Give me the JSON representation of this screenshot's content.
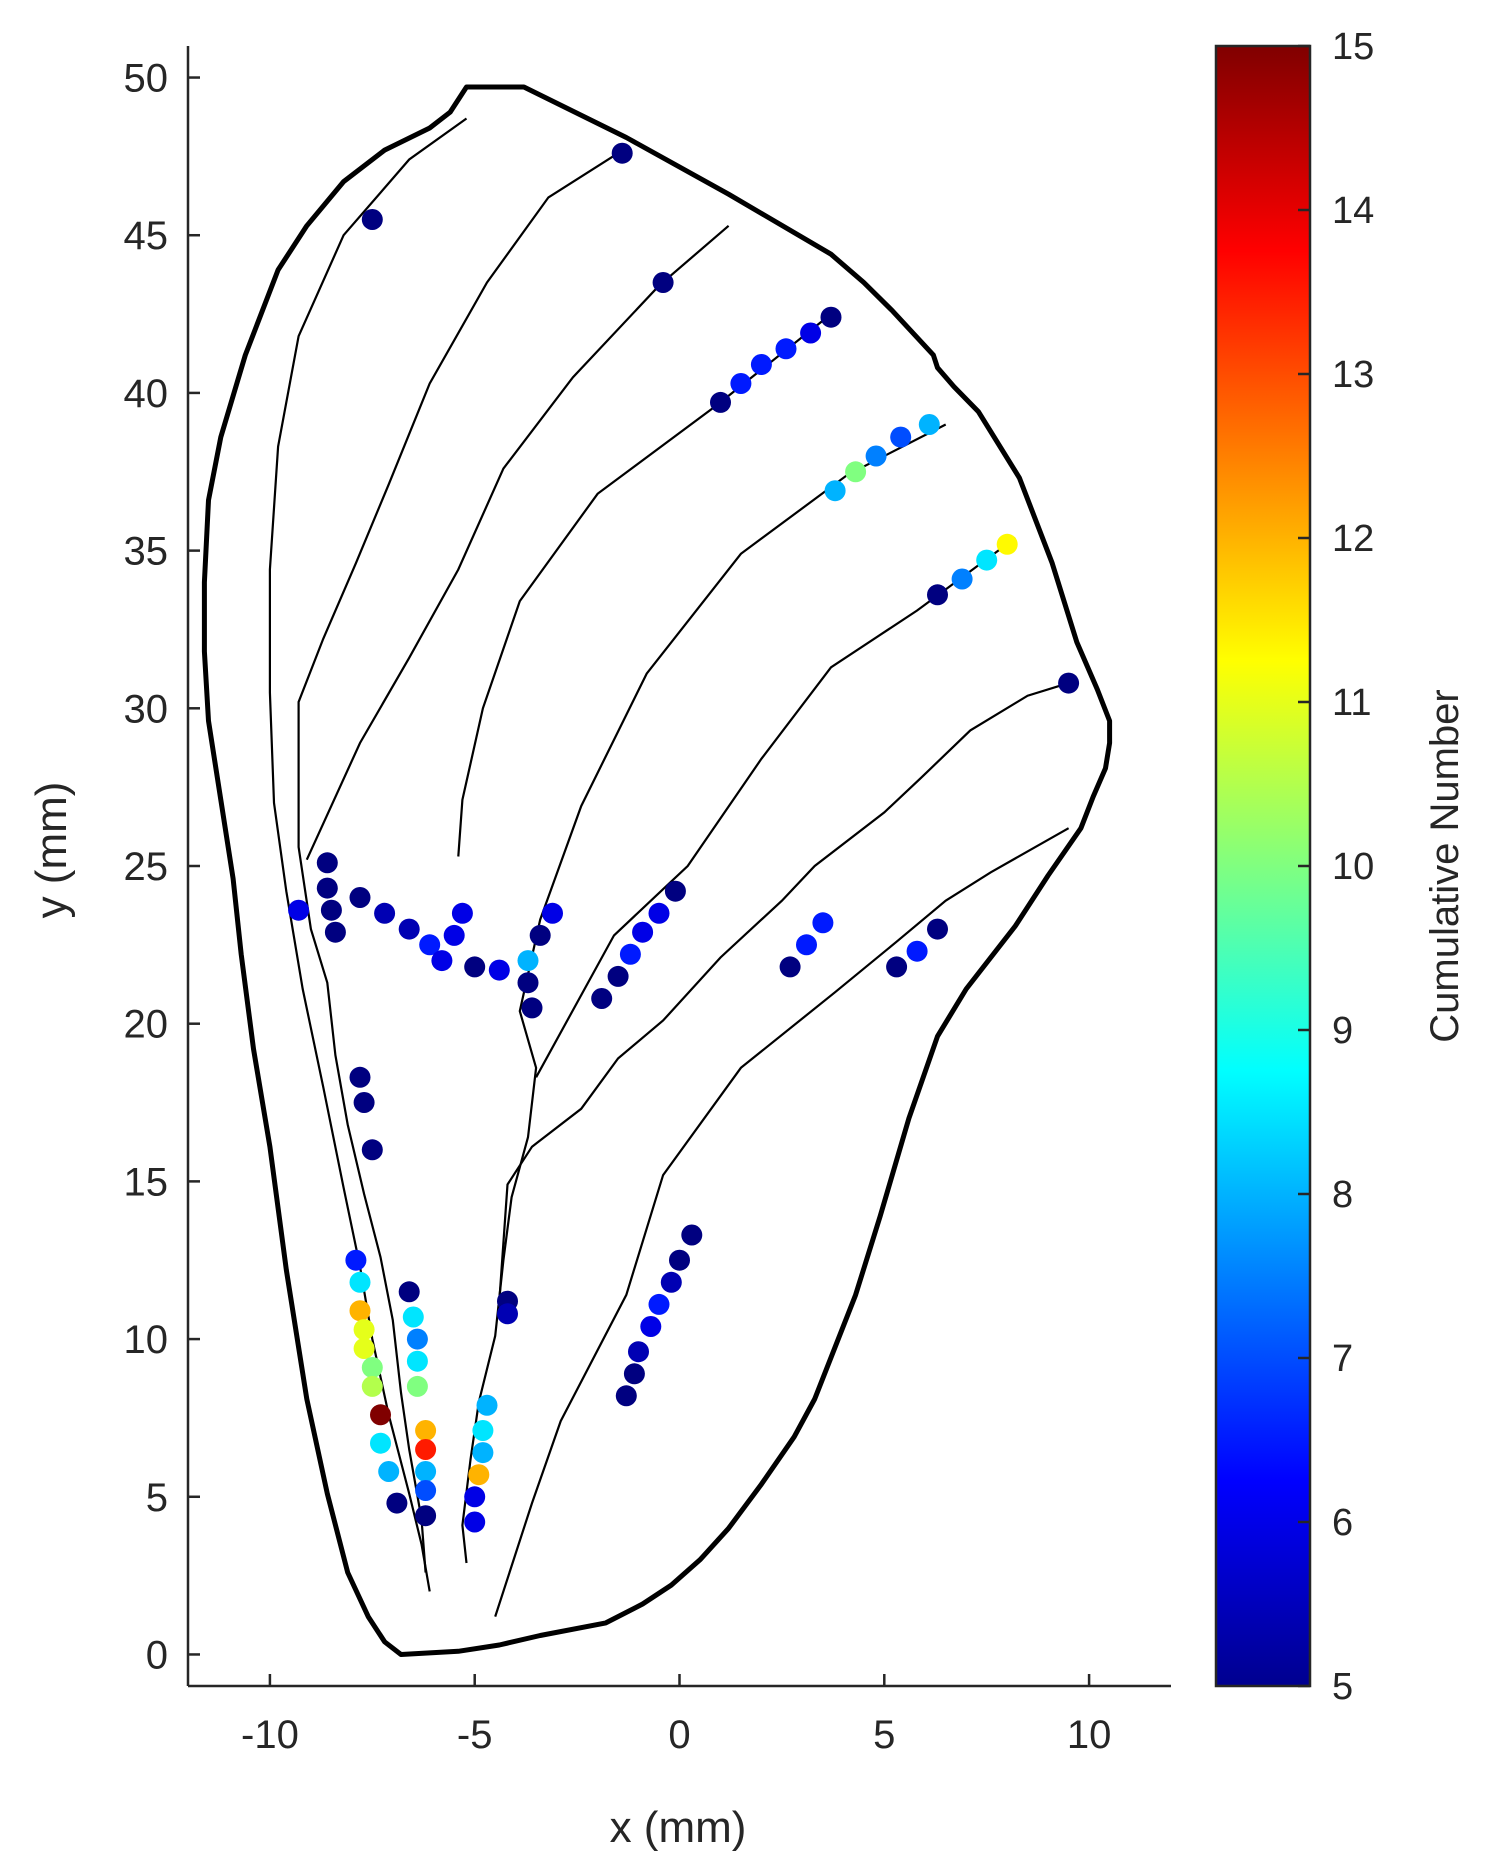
{
  "chart_data": {
    "type": "scatter",
    "title": "",
    "xlabel": "x (mm)",
    "ylabel": "y (mm)",
    "xlim": [
      -12,
      12
    ],
    "ylim": [
      -1,
      51
    ],
    "xticks": [
      -10,
      -5,
      0,
      5,
      10
    ],
    "xtick_labels": [
      "-10",
      "-5",
      "0",
      "5",
      "10"
    ],
    "yticks": [
      0,
      5,
      10,
      15,
      20,
      25,
      30,
      35,
      40,
      45,
      50
    ],
    "ytick_labels": [
      "0",
      "5",
      "10",
      "15",
      "20",
      "25",
      "30",
      "35",
      "40",
      "45",
      "50"
    ],
    "colorbar": {
      "label": "Cumulative Number",
      "range": [
        5,
        15
      ],
      "ticks": [
        5,
        6,
        7,
        8,
        9,
        10,
        11,
        12,
        13,
        14,
        15
      ],
      "tick_labels": [
        "5",
        "6",
        "7",
        "8",
        "9",
        "10",
        "11",
        "12",
        "13",
        "14",
        "15"
      ],
      "colormap": "jet"
    },
    "outline": [
      [
        -5.2,
        49.7
      ],
      [
        -3.8,
        49.7
      ],
      [
        -1.3,
        48.1
      ],
      [
        1.2,
        46.3
      ],
      [
        3.7,
        44.4
      ],
      [
        4.5,
        43.5
      ],
      [
        5.2,
        42.6
      ],
      [
        6.2,
        41.2
      ],
      [
        6.3,
        40.8
      ],
      [
        6.7,
        40.2
      ],
      [
        7.3,
        39.4
      ],
      [
        8.3,
        37.3
      ],
      [
        9.1,
        34.6
      ],
      [
        9.7,
        32.1
      ],
      [
        10.2,
        30.6
      ],
      [
        10.5,
        29.6
      ],
      [
        10.5,
        28.9
      ],
      [
        10.4,
        28.1
      ],
      [
        10.1,
        27.2
      ],
      [
        9.8,
        26.2
      ],
      [
        9.0,
        24.7
      ],
      [
        8.2,
        23.1
      ],
      [
        7.0,
        21.1
      ],
      [
        6.3,
        19.6
      ],
      [
        5.6,
        17.0
      ],
      [
        4.9,
        13.9
      ],
      [
        4.3,
        11.4
      ],
      [
        3.3,
        8.1
      ],
      [
        2.8,
        6.9
      ],
      [
        2.0,
        5.4
      ],
      [
        1.2,
        4.0
      ],
      [
        0.5,
        3.0
      ],
      [
        -0.2,
        2.2
      ],
      [
        -0.9,
        1.6
      ],
      [
        -1.8,
        1.0
      ],
      [
        -3.4,
        0.6
      ],
      [
        -4.4,
        0.3
      ],
      [
        -5.4,
        0.1
      ],
      [
        -6.8,
        0.0
      ],
      [
        -7.2,
        0.4
      ],
      [
        -7.6,
        1.2
      ],
      [
        -8.1,
        2.6
      ],
      [
        -8.6,
        5.1
      ],
      [
        -9.1,
        8.1
      ],
      [
        -9.6,
        12.2
      ],
      [
        -10.0,
        16.1
      ],
      [
        -10.4,
        19.2
      ],
      [
        -10.7,
        22.2
      ],
      [
        -10.9,
        24.6
      ],
      [
        -11.2,
        27.1
      ],
      [
        -11.5,
        29.6
      ],
      [
        -11.6,
        31.8
      ],
      [
        -11.6,
        34.0
      ],
      [
        -11.5,
        36.6
      ],
      [
        -11.2,
        38.6
      ],
      [
        -10.6,
        41.2
      ],
      [
        -9.8,
        43.9
      ],
      [
        -9.1,
        45.3
      ],
      [
        -8.2,
        46.7
      ],
      [
        -7.2,
        47.7
      ],
      [
        -6.1,
        48.4
      ],
      [
        -5.6,
        48.9
      ],
      [
        -5.2,
        49.7
      ]
    ],
    "fibers": [
      [
        [
          -5.2,
          48.7
        ],
        [
          -6.6,
          47.4
        ],
        [
          -8.2,
          45.0
        ],
        [
          -9.3,
          41.8
        ],
        [
          -9.8,
          38.3
        ],
        [
          -10.0,
          34.4
        ],
        [
          -10.0,
          30.5
        ],
        [
          -9.9,
          27.0
        ],
        [
          -9.6,
          24.2
        ],
        [
          -9.2,
          21.1
        ],
        [
          -8.7,
          18.0
        ],
        [
          -8.2,
          14.8
        ],
        [
          -7.8,
          12.3
        ],
        [
          -7.5,
          10.0
        ],
        [
          -7.1,
          7.6
        ],
        [
          -6.6,
          5.1
        ],
        [
          -6.3,
          3.5
        ],
        [
          -6.1,
          2.0
        ]
      ],
      [
        [
          -1.5,
          47.6
        ],
        [
          -3.2,
          46.2
        ],
        [
          -4.7,
          43.5
        ],
        [
          -6.1,
          40.3
        ],
        [
          -7.1,
          37.1
        ],
        [
          -7.9,
          34.6
        ],
        [
          -8.7,
          32.2
        ],
        [
          -9.3,
          30.2
        ],
        [
          -9.3,
          25.6
        ],
        [
          -9.0,
          23.0
        ],
        [
          -8.6,
          21.3
        ],
        [
          -8.4,
          19.0
        ],
        [
          -8.1,
          16.8
        ],
        [
          -7.7,
          14.6
        ],
        [
          -7.3,
          12.6
        ],
        [
          -7.0,
          10.6
        ],
        [
          -6.8,
          8.3
        ],
        [
          -6.6,
          6.5
        ],
        [
          -6.3,
          4.3
        ],
        [
          -6.2,
          2.6
        ]
      ],
      [
        [
          1.2,
          45.3
        ],
        [
          -0.5,
          43.4
        ],
        [
          -2.6,
          40.5
        ],
        [
          -4.3,
          37.6
        ],
        [
          -5.4,
          34.4
        ],
        [
          -6.6,
          31.6
        ],
        [
          -7.8,
          28.9
        ],
        [
          -9.1,
          25.2
        ]
      ],
      [
        [
          3.7,
          42.5
        ],
        [
          0.9,
          39.6
        ],
        [
          -2.0,
          36.8
        ],
        [
          -3.9,
          33.4
        ],
        [
          -4.8,
          30.0
        ],
        [
          -5.3,
          27.1
        ],
        [
          -5.4,
          25.3
        ]
      ],
      [
        [
          6.5,
          39.0
        ],
        [
          4.1,
          37.4
        ],
        [
          1.5,
          34.9
        ],
        [
          -0.8,
          31.1
        ],
        [
          -2.4,
          26.9
        ],
        [
          -3.4,
          23.3
        ],
        [
          -3.9,
          20.4
        ],
        [
          -3.5,
          18.6
        ],
        [
          -3.7,
          16.4
        ],
        [
          -4.1,
          14.5
        ],
        [
          -4.3,
          12.5
        ],
        [
          -4.5,
          10.1
        ],
        [
          -4.9,
          8.0
        ],
        [
          -5.1,
          6.2
        ],
        [
          -5.3,
          4.1
        ],
        [
          -5.2,
          2.9
        ]
      ],
      [
        [
          8.2,
          35.4
        ],
        [
          5.8,
          33.1
        ],
        [
          3.7,
          31.3
        ],
        [
          2.0,
          28.4
        ],
        [
          0.2,
          25.0
        ],
        [
          -1.6,
          22.8
        ],
        [
          -3.5,
          18.3
        ]
      ],
      [
        [
          9.5,
          30.8
        ],
        [
          8.5,
          30.4
        ],
        [
          7.1,
          29.3
        ],
        [
          5.9,
          27.8
        ],
        [
          5.0,
          26.7
        ],
        [
          3.3,
          25.0
        ],
        [
          2.5,
          23.9
        ],
        [
          1.0,
          22.1
        ],
        [
          -0.4,
          20.1
        ],
        [
          -1.5,
          18.9
        ],
        [
          -2.4,
          17.3
        ],
        [
          -3.6,
          16.1
        ],
        [
          -4.2,
          14.9
        ],
        [
          -4.4,
          11.2
        ]
      ],
      [
        [
          9.5,
          26.2
        ],
        [
          7.6,
          24.8
        ],
        [
          6.5,
          23.9
        ],
        [
          5.3,
          22.6
        ],
        [
          3.8,
          21.0
        ],
        [
          1.5,
          18.6
        ],
        [
          -0.4,
          15.2
        ],
        [
          -1.3,
          11.4
        ],
        [
          -2.9,
          7.4
        ],
        [
          -3.6,
          4.8
        ],
        [
          -4.5,
          1.2
        ]
      ]
    ],
    "points": [
      {
        "x": -7.5,
        "y": 45.5,
        "v": 5
      },
      {
        "x": -1.4,
        "y": 47.6,
        "v": 5
      },
      {
        "x": -0.4,
        "y": 43.5,
        "v": 5
      },
      {
        "x": 3.7,
        "y": 42.4,
        "v": 5
      },
      {
        "x": 3.2,
        "y": 41.9,
        "v": 6
      },
      {
        "x": 2.6,
        "y": 41.4,
        "v": 6.5
      },
      {
        "x": 2.0,
        "y": 40.9,
        "v": 6.5
      },
      {
        "x": 1.5,
        "y": 40.3,
        "v": 6.5
      },
      {
        "x": 1.0,
        "y": 39.7,
        "v": 5
      },
      {
        "x": 6.1,
        "y": 39.0,
        "v": 8
      },
      {
        "x": 5.4,
        "y": 38.6,
        "v": 7
      },
      {
        "x": 4.8,
        "y": 38.0,
        "v": 7.5
      },
      {
        "x": 4.3,
        "y": 37.5,
        "v": 10
      },
      {
        "x": 3.8,
        "y": 36.9,
        "v": 8
      },
      {
        "x": 8.0,
        "y": 35.2,
        "v": 11.3
      },
      {
        "x": 7.5,
        "y": 34.7,
        "v": 8.5
      },
      {
        "x": 6.9,
        "y": 34.1,
        "v": 7.5
      },
      {
        "x": 6.3,
        "y": 33.6,
        "v": 5
      },
      {
        "x": 9.5,
        "y": 30.8,
        "v": 5
      },
      {
        "x": -8.6,
        "y": 25.1,
        "v": 5
      },
      {
        "x": -8.6,
        "y": 24.3,
        "v": 5
      },
      {
        "x": -9.3,
        "y": 23.6,
        "v": 6
      },
      {
        "x": -8.5,
        "y": 23.6,
        "v": 5
      },
      {
        "x": -8.4,
        "y": 22.9,
        "v": 5
      },
      {
        "x": -7.8,
        "y": 24.0,
        "v": 5
      },
      {
        "x": -7.2,
        "y": 23.5,
        "v": 5.5
      },
      {
        "x": -6.6,
        "y": 23.0,
        "v": 5.5
      },
      {
        "x": -6.1,
        "y": 22.5,
        "v": 6.5
      },
      {
        "x": -5.8,
        "y": 22.0,
        "v": 6
      },
      {
        "x": -5.0,
        "y": 21.8,
        "v": 5
      },
      {
        "x": -5.5,
        "y": 22.8,
        "v": 6
      },
      {
        "x": -5.3,
        "y": 23.5,
        "v": 6
      },
      {
        "x": -4.4,
        "y": 21.7,
        "v": 6
      },
      {
        "x": -3.7,
        "y": 22.0,
        "v": 8
      },
      {
        "x": -3.7,
        "y": 21.3,
        "v": 5
      },
      {
        "x": -3.6,
        "y": 20.5,
        "v": 5
      },
      {
        "x": -3.4,
        "y": 22.8,
        "v": 5
      },
      {
        "x": -3.1,
        "y": 23.5,
        "v": 6
      },
      {
        "x": -1.9,
        "y": 20.8,
        "v": 5
      },
      {
        "x": -1.5,
        "y": 21.5,
        "v": 5
      },
      {
        "x": -1.2,
        "y": 22.2,
        "v": 6.5
      },
      {
        "x": -0.9,
        "y": 22.9,
        "v": 6
      },
      {
        "x": -0.5,
        "y": 23.5,
        "v": 6
      },
      {
        "x": -0.1,
        "y": 24.2,
        "v": 5
      },
      {
        "x": 2.7,
        "y": 21.8,
        "v": 5
      },
      {
        "x": 3.1,
        "y": 22.5,
        "v": 6.5
      },
      {
        "x": 3.5,
        "y": 23.2,
        "v": 6.5
      },
      {
        "x": 5.3,
        "y": 21.8,
        "v": 5
      },
      {
        "x": 5.8,
        "y": 22.3,
        "v": 6.5
      },
      {
        "x": 6.3,
        "y": 23.0,
        "v": 5
      },
      {
        "x": -7.8,
        "y": 18.3,
        "v": 5
      },
      {
        "x": -7.7,
        "y": 17.5,
        "v": 5
      },
      {
        "x": -7.5,
        "y": 16.0,
        "v": 5
      },
      {
        "x": 0.3,
        "y": 13.3,
        "v": 5
      },
      {
        "x": 0.0,
        "y": 12.5,
        "v": 5
      },
      {
        "x": -0.2,
        "y": 11.8,
        "v": 5.5
      },
      {
        "x": -0.5,
        "y": 11.1,
        "v": 6.5
      },
      {
        "x": -0.7,
        "y": 10.4,
        "v": 6
      },
      {
        "x": -1.0,
        "y": 9.6,
        "v": 5.5
      },
      {
        "x": -1.1,
        "y": 8.9,
        "v": 5
      },
      {
        "x": -1.3,
        "y": 8.2,
        "v": 5
      },
      {
        "x": -4.2,
        "y": 11.2,
        "v": 5
      },
      {
        "x": -4.2,
        "y": 10.8,
        "v": 5.5
      },
      {
        "x": -7.9,
        "y": 12.5,
        "v": 6.5
      },
      {
        "x": -7.8,
        "y": 11.8,
        "v": 8.5
      },
      {
        "x": -7.8,
        "y": 10.9,
        "v": 12
      },
      {
        "x": -7.7,
        "y": 10.3,
        "v": 11
      },
      {
        "x": -7.7,
        "y": 9.7,
        "v": 11
      },
      {
        "x": -7.5,
        "y": 9.1,
        "v": 10
      },
      {
        "x": -7.5,
        "y": 8.5,
        "v": 10.5
      },
      {
        "x": -7.3,
        "y": 7.6,
        "v": 15
      },
      {
        "x": -7.3,
        "y": 6.7,
        "v": 8.5
      },
      {
        "x": -7.1,
        "y": 5.8,
        "v": 8
      },
      {
        "x": -6.9,
        "y": 4.8,
        "v": 5
      },
      {
        "x": -6.6,
        "y": 11.5,
        "v": 5
      },
      {
        "x": -6.5,
        "y": 10.7,
        "v": 8.5
      },
      {
        "x": -6.4,
        "y": 10.0,
        "v": 7.5
      },
      {
        "x": -6.4,
        "y": 9.3,
        "v": 8.5
      },
      {
        "x": -6.4,
        "y": 8.5,
        "v": 10
      },
      {
        "x": -6.2,
        "y": 7.1,
        "v": 12
      },
      {
        "x": -6.2,
        "y": 6.5,
        "v": 13.5
      },
      {
        "x": -6.2,
        "y": 5.8,
        "v": 8
      },
      {
        "x": -6.2,
        "y": 5.2,
        "v": 7
      },
      {
        "x": -6.2,
        "y": 4.4,
        "v": 5
      },
      {
        "x": -4.7,
        "y": 7.9,
        "v": 8
      },
      {
        "x": -4.8,
        "y": 7.1,
        "v": 8.5
      },
      {
        "x": -4.8,
        "y": 6.4,
        "v": 8
      },
      {
        "x": -4.9,
        "y": 5.7,
        "v": 12
      },
      {
        "x": -5.0,
        "y": 5.0,
        "v": 6
      },
      {
        "x": -5.0,
        "y": 4.2,
        "v": 6
      }
    ]
  }
}
